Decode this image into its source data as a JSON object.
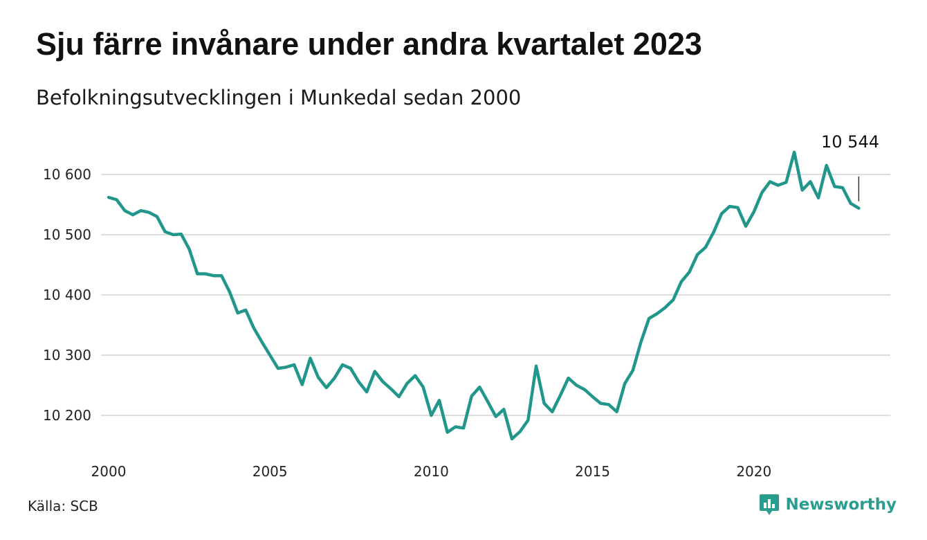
{
  "header": {
    "title": "Sju färre invånare under andra kvartalet 2023",
    "subtitle": "Befolkningsutvecklingen i Munkedal sedan 2000"
  },
  "footer": {
    "source": "Källa: SCB",
    "brand": "Newsworthy",
    "brand_icon": "bar-chart-chat-icon"
  },
  "colors": {
    "line": "#21968a",
    "grid": "#dddddd",
    "brand": "#2a9d8f"
  },
  "chart_data": {
    "type": "line",
    "title": "Sju färre invånare under andra kvartalet 2023",
    "subtitle": "Befolkningsutvecklingen i Munkedal sedan 2000",
    "xlabel": "",
    "ylabel": "",
    "x_range": [
      2000,
      2023.5
    ],
    "ylim": [
      10140,
      10640
    ],
    "x_ticks": [
      {
        "value": 2000,
        "label": "2000"
      },
      {
        "value": 2005,
        "label": "2005"
      },
      {
        "value": 2010,
        "label": "2010"
      },
      {
        "value": 2015,
        "label": "2015"
      },
      {
        "value": 2020,
        "label": "2020"
      }
    ],
    "y_ticks": [
      {
        "value": 10200,
        "label": "10 200"
      },
      {
        "value": 10300,
        "label": "10 300"
      },
      {
        "value": 10400,
        "label": "10 400"
      },
      {
        "value": 10500,
        "label": "10 500"
      },
      {
        "value": 10600,
        "label": "10 600"
      }
    ],
    "grid": true,
    "legend": "none",
    "annotation": {
      "x": 2023.25,
      "y": 10544,
      "label": "10 544"
    },
    "series": [
      {
        "x": [
          2000.0,
          2000.25,
          2000.5,
          2000.75,
          2001.0,
          2001.25,
          2001.5,
          2001.75,
          2002.0,
          2002.25,
          2002.5,
          2002.75,
          2003.0,
          2003.25,
          2003.5,
          2003.75,
          2004.0,
          2004.25,
          2004.5,
          2004.75,
          2005.0,
          2005.25,
          2005.5,
          2005.75,
          2006.0,
          2006.25,
          2006.5,
          2006.75,
          2007.0,
          2007.25,
          2007.5,
          2007.75,
          2008.0,
          2008.25,
          2008.5,
          2008.75,
          2009.0,
          2009.25,
          2009.5,
          2009.75,
          2010.0,
          2010.25,
          2010.5,
          2010.75,
          2011.0,
          2011.25,
          2011.5,
          2011.75,
          2012.0,
          2012.25,
          2012.5,
          2012.75,
          2013.0,
          2013.25,
          2013.5,
          2013.75,
          2014.0,
          2014.25,
          2014.5,
          2014.75,
          2015.0,
          2015.25,
          2015.5,
          2015.75,
          2016.0,
          2016.25,
          2016.5,
          2016.75,
          2017.0,
          2017.25,
          2017.5,
          2017.75,
          2018.0,
          2018.25,
          2018.5,
          2018.75,
          2019.0,
          2019.25,
          2019.5,
          2019.75,
          2020.0,
          2020.25,
          2020.5,
          2020.75,
          2021.0,
          2021.25,
          2021.5,
          2021.75,
          2022.0,
          2022.25,
          2022.5,
          2022.75,
          2023.0,
          2023.25
        ],
        "values": [
          10562,
          10558,
          10540,
          10533,
          10540,
          10537,
          10530,
          10505,
          10500,
          10501,
          10476,
          10435,
          10435,
          10432,
          10432,
          10405,
          10370,
          10375,
          10345,
          10322,
          10300,
          10278,
          10280,
          10284,
          10251,
          10295,
          10263,
          10246,
          10262,
          10284,
          10278,
          10256,
          10239,
          10273,
          10256,
          10244,
          10231,
          10253,
          10266,
          10247,
          10200,
          10225,
          10172,
          10181,
          10179,
          10232,
          10247,
          10223,
          10198,
          10210,
          10161,
          10173,
          10192,
          10282,
          10220,
          10206,
          10233,
          10262,
          10250,
          10243,
          10231,
          10220,
          10218,
          10206,
          10253,
          10275,
          10322,
          10361,
          10369,
          10379,
          10392,
          10422,
          10438,
          10467,
          10479,
          10504,
          10535,
          10547,
          10545,
          10514,
          10538,
          10570,
          10588,
          10582,
          10587,
          10637,
          10574,
          10588,
          10561,
          10615,
          10580,
          10578,
          10552,
          10544
        ]
      }
    ]
  }
}
